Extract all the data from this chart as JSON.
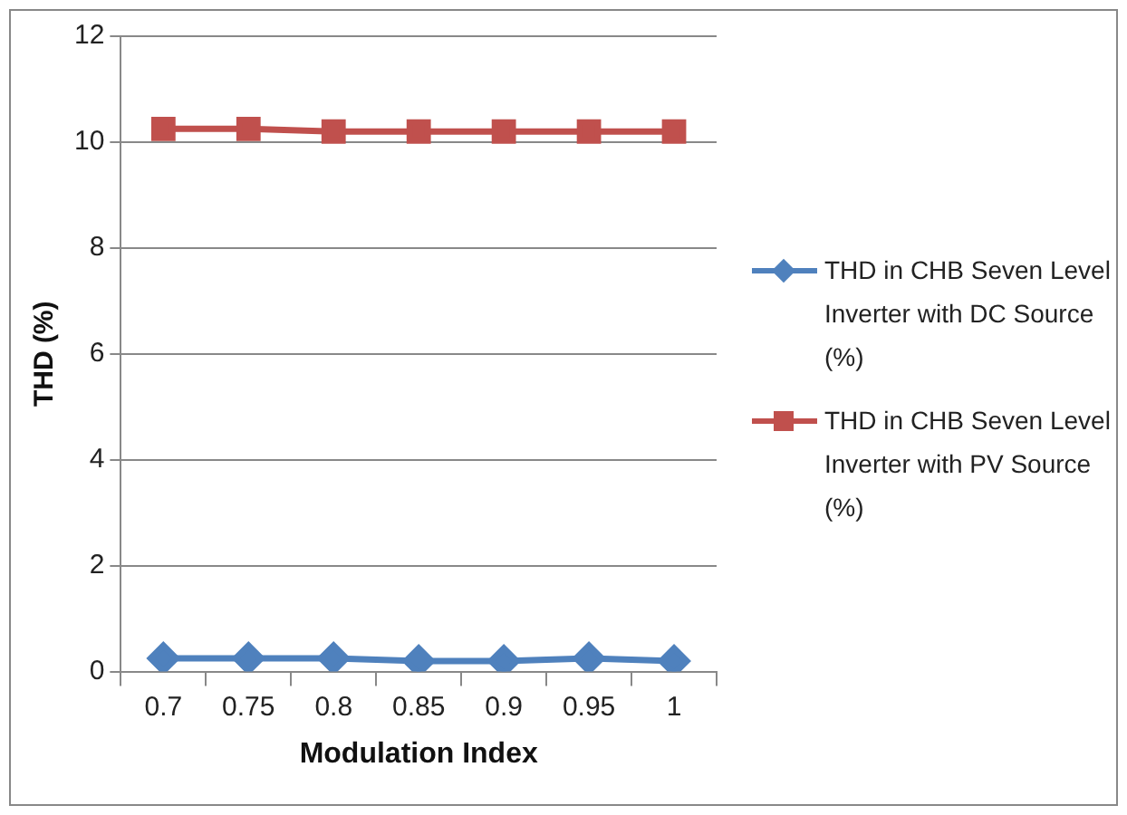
{
  "chart_data": {
    "type": "line",
    "xlabel": "Modulation Index",
    "ylabel": "THD (%)",
    "categories": [
      "0.7",
      "0.75",
      "0.8",
      "0.85",
      "0.9",
      "0.95",
      "1"
    ],
    "series": [
      {
        "name": "THD in CHB Seven Level Inverter with DC Source (%)",
        "color": "#4f81bd",
        "marker": "diamond",
        "values": [
          0.25,
          0.25,
          0.25,
          0.2,
          0.2,
          0.25,
          0.2
        ]
      },
      {
        "name": "THD in CHB Seven Level Inverter with PV Source (%)",
        "color": "#c0504d",
        "marker": "square",
        "values": [
          10.25,
          10.25,
          10.2,
          10.2,
          10.2,
          10.2,
          10.2
        ]
      }
    ],
    "ylim": [
      0,
      12
    ],
    "yticks": [
      0,
      2,
      4,
      6,
      8,
      10,
      12
    ],
    "grid": "y",
    "legend": "right",
    "line_style": "solid"
  }
}
